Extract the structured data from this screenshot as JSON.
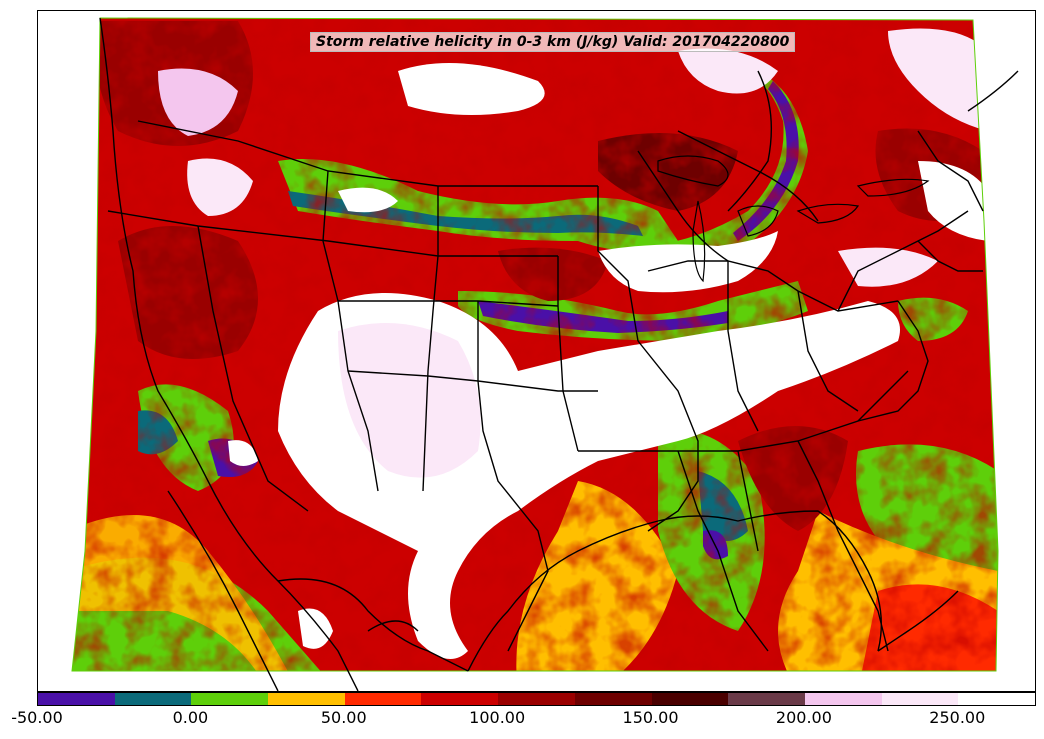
{
  "title": "Storm relative helicity in 0-3 km (J/kg) Valid: 201704220800",
  "colorbar": {
    "levels": [
      -50,
      -25,
      0,
      25,
      50,
      75,
      100,
      125,
      150,
      175,
      200,
      225,
      250,
      275
    ],
    "colors": [
      "#4a10a8",
      "#0b6a7a",
      "#5ecf0a",
      "#ffbf00",
      "#ff2a00",
      "#cc0000",
      "#9a0000",
      "#6e0000",
      "#4a0000",
      "#6a3a48",
      "#f4c6ee",
      "#fbe8f8",
      "#ffffff"
    ],
    "tick_labels": [
      "-50.00",
      "0.00",
      "50.00",
      "100.00",
      "150.00",
      "200.00",
      "250.00"
    ]
  },
  "map": {
    "region": "CONUS",
    "field": "storm-relative-helicity-0-3km"
  }
}
